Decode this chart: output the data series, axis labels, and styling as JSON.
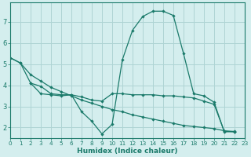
{
  "xlabel": "Humidex (Indice chaleur)",
  "bg_color": "#d4eeee",
  "grid_color": "#aed4d4",
  "line_color": "#1a7a6a",
  "xlim": [
    0,
    23
  ],
  "ylim": [
    1.5,
    7.9
  ],
  "yticks": [
    2,
    3,
    4,
    5,
    6,
    7
  ],
  "xticks": [
    0,
    1,
    2,
    3,
    4,
    5,
    6,
    7,
    8,
    9,
    10,
    11,
    12,
    13,
    14,
    15,
    16,
    17,
    18,
    19,
    20,
    21,
    22,
    23
  ],
  "line1_x": [
    0,
    1,
    2,
    3,
    4,
    5,
    6,
    7,
    8,
    9,
    10,
    11,
    12,
    13,
    14,
    15,
    16,
    17,
    18,
    19,
    20,
    21,
    22
  ],
  "line1_y": [
    5.3,
    5.05,
    4.1,
    3.6,
    3.55,
    3.5,
    3.55,
    2.75,
    2.3,
    1.7,
    2.15,
    5.2,
    6.6,
    7.25,
    7.5,
    7.5,
    7.3,
    5.5,
    3.6,
    3.5,
    3.2,
    1.8,
    1.8
  ],
  "line2_x": [
    0,
    1,
    2,
    3,
    4,
    5,
    6,
    7,
    8,
    9,
    10,
    11,
    12,
    13,
    14,
    15,
    16,
    17,
    18,
    19,
    20,
    21,
    22
  ],
  "line2_y": [
    5.3,
    5.05,
    4.5,
    4.2,
    3.9,
    3.7,
    3.5,
    3.3,
    3.15,
    3.0,
    2.85,
    2.75,
    2.6,
    2.5,
    2.4,
    2.3,
    2.2,
    2.1,
    2.05,
    2.0,
    1.95,
    1.85,
    1.8
  ],
  "line3_x": [
    2,
    3,
    4,
    5,
    6,
    7,
    8,
    9,
    10,
    11,
    12,
    13,
    14,
    15,
    16,
    17,
    18,
    19,
    20,
    21,
    22
  ],
  "line3_y": [
    4.1,
    3.95,
    3.6,
    3.55,
    3.55,
    3.45,
    3.3,
    3.25,
    3.6,
    3.6,
    3.55,
    3.55,
    3.55,
    3.5,
    3.5,
    3.45,
    3.4,
    3.25,
    3.1,
    1.82,
    1.82
  ]
}
